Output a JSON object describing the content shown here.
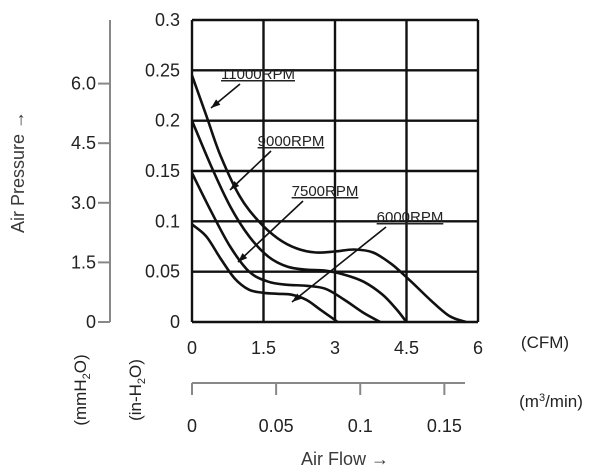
{
  "chart_data": {
    "type": "line",
    "title": "",
    "xlabel": "Air Flow →",
    "ylabel": "Air Pressure →",
    "x_unit_primary": "(CFM)",
    "x_unit_secondary": "(m³/min)",
    "y_unit_inH2O": "(in-H₂O)",
    "y_unit_mmH2O": "(mmH₂O)",
    "xlim": [
      0,
      6
    ],
    "ylim": [
      0,
      0.3
    ],
    "grid": true,
    "x_ticks": [
      "0",
      "1.5",
      "3",
      "4.5",
      "6"
    ],
    "x_tick_values": [
      0,
      1.5,
      3,
      4.5,
      6
    ],
    "y_ticks": [
      "0",
      "0.05",
      "0.1",
      "0.15",
      "0.2",
      "0.25",
      "0.3"
    ],
    "y_tick_values": [
      0,
      0.05,
      0.1,
      0.15,
      0.2,
      0.25,
      0.3
    ],
    "y2_ticks": [
      "0",
      "1.5",
      "3.0",
      "4.5",
      "6.0"
    ],
    "y2_tick_values": [
      0,
      1.5,
      3.0,
      4.5,
      6.0
    ],
    "x2_ticks": [
      "0",
      "0.05",
      "0.1",
      "0.15"
    ],
    "x2_tick_values": [
      0,
      0.05,
      0.1,
      0.15
    ],
    "series": [
      {
        "name": "11000RPM",
        "x": [
          0,
          0.3,
          0.6,
          1.0,
          1.4,
          1.8,
          2.2,
          2.6,
          3.0,
          3.4,
          3.8,
          4.2,
          4.6,
          5.0,
          5.4,
          5.75
        ],
        "y": [
          0.245,
          0.205,
          0.165,
          0.125,
          0.1,
          0.083,
          0.073,
          0.069,
          0.07,
          0.072,
          0.069,
          0.057,
          0.04,
          0.022,
          0.006,
          0
        ]
      },
      {
        "name": "9000RPM",
        "x": [
          0,
          0.4,
          0.8,
          1.2,
          1.6,
          2.0,
          2.4,
          2.8,
          3.2,
          3.6,
          4.0,
          4.3,
          4.5
        ],
        "y": [
          0.2,
          0.155,
          0.115,
          0.085,
          0.065,
          0.055,
          0.052,
          0.051,
          0.047,
          0.04,
          0.027,
          0.012,
          0
        ]
      },
      {
        "name": "7500RPM",
        "x": [
          0,
          0.4,
          0.8,
          1.2,
          1.6,
          2.0,
          2.4,
          2.8,
          3.2,
          3.6,
          3.95
        ],
        "y": [
          0.148,
          0.11,
          0.075,
          0.05,
          0.04,
          0.037,
          0.036,
          0.033,
          0.022,
          0.009,
          0
        ]
      },
      {
        "name": "6000RPM",
        "x": [
          0,
          0.3,
          0.6,
          0.9,
          1.2,
          1.5,
          1.8,
          2.1,
          2.4,
          2.7,
          3.0,
          3.05
        ],
        "y": [
          0.097,
          0.085,
          0.063,
          0.043,
          0.032,
          0.029,
          0.028,
          0.027,
          0.022,
          0.012,
          0.002,
          0
        ]
      }
    ]
  }
}
